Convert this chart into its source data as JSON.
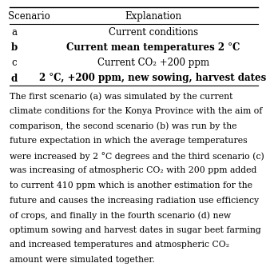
{
  "table_headers": [
    "Scenario",
    "Explanation"
  ],
  "table_rows": [
    [
      "a",
      "Current conditions"
    ],
    [
      "b",
      "Current mean temperatures 2 °C"
    ],
    [
      "c",
      "Current CO₂ +200 ppm"
    ],
    [
      "d",
      "2 °C, +200 ppm, new sowing, harvest dates"
    ]
  ],
  "body_lines": [
    "The first scenario (a) was simulated by the current",
    "climate conditions for the Konya Province with the aim of",
    "comparison, the second scenario (b) was run by the",
    "future expectation in which the average temperatures",
    "were increased by 2 °C degrees and the third scenario (c)",
    "was increasing of atmospheric CO₂ with 200 ppm added",
    "to current 410 ppm which is another estimation for the",
    "future and causes the increasing radiation use efficiency",
    "of crops, and finally in the fourth scenario (d) new",
    "optimum sowing and harvest dates in sugar beet farming",
    "and increased temperatures and atmospheric CO₂",
    "amount were simulated together."
  ],
  "background_color": "#ffffff",
  "text_color": "#000000",
  "line_color": "#000000",
  "font_size_header": 8.5,
  "font_size_row": 8.5,
  "font_size_body": 7.8
}
